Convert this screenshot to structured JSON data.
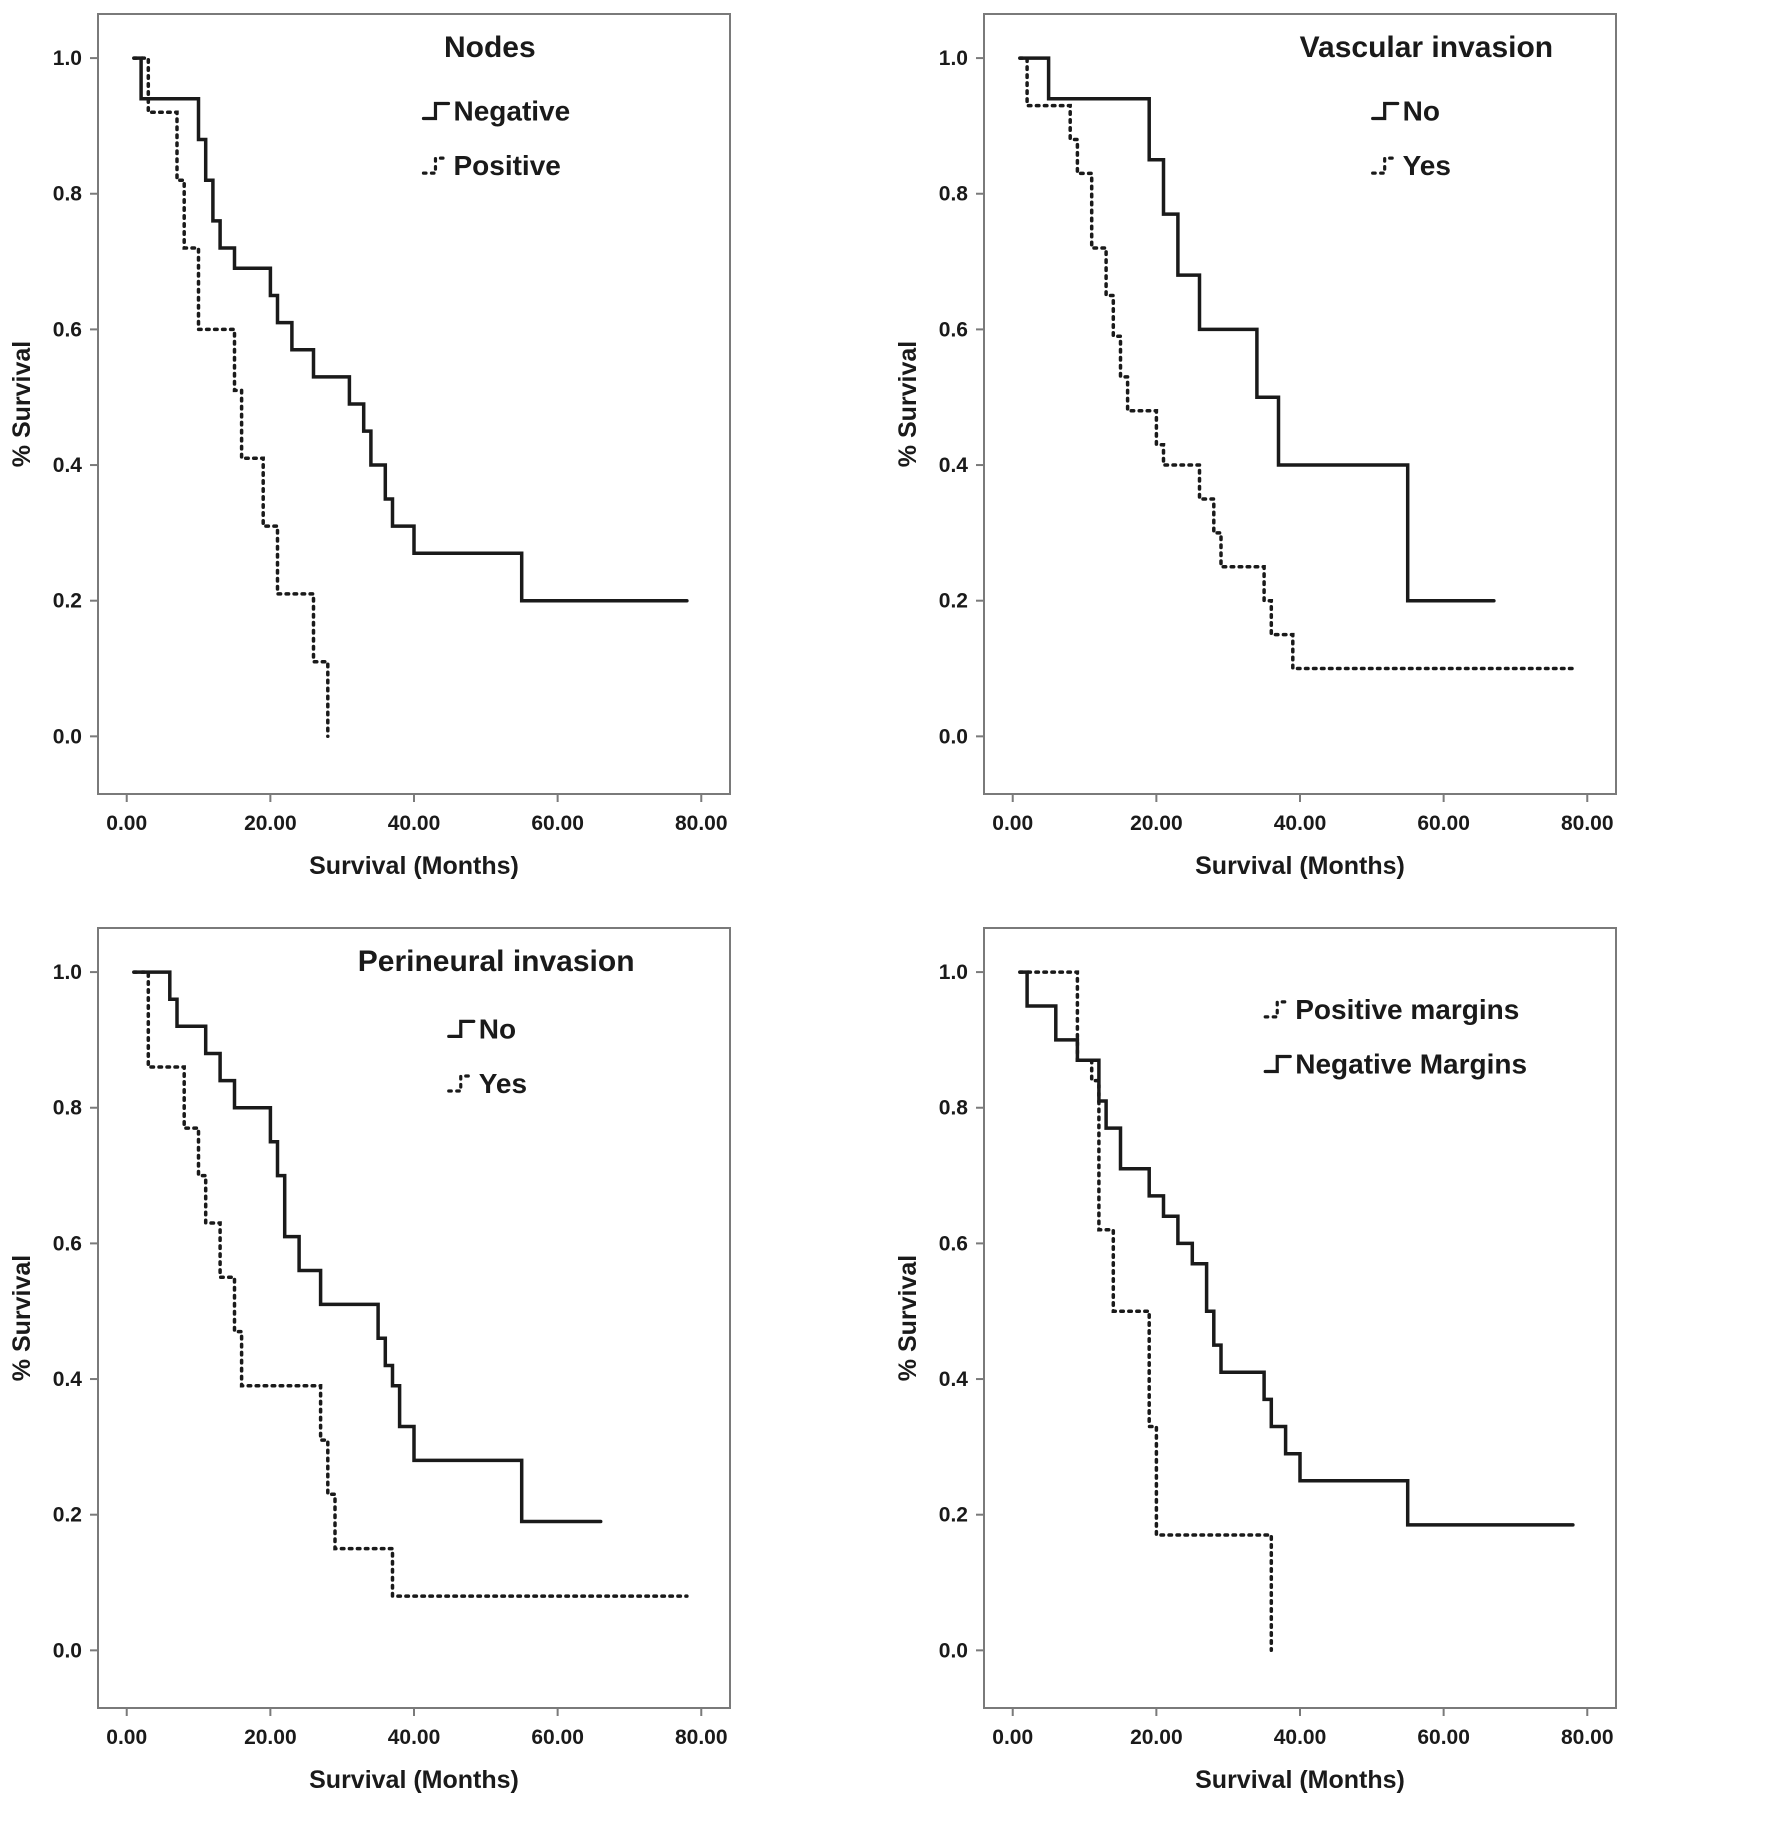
{
  "figure": {
    "description": "Four Kaplan-Meier survival step plots arranged in a 2x2 grid",
    "x_axis_label": "Survival (Months)",
    "y_axis_label": "% Survival"
  },
  "chart_data": [
    {
      "id": "nodes",
      "type": "line",
      "subtype": "kaplan-meier-step",
      "title": "Nodes",
      "xlabel": "Survival (Months)",
      "ylabel": "% Survival",
      "xlim": [
        0,
        80
      ],
      "ylim": [
        0.0,
        1.0
      ],
      "x_tick_values": [
        0,
        20,
        40,
        60,
        80
      ],
      "x_tick_labels": [
        "0.00",
        "20.00",
        "40.00",
        "60.00",
        "80.00"
      ],
      "y_tick_values": [
        0.0,
        0.2,
        0.4,
        0.6,
        0.8,
        1.0
      ],
      "y_tick_labels": [
        "0.0",
        "0.2",
        "0.4",
        "0.6",
        "0.8",
        "1.0"
      ],
      "legend_position": "top-center-inside",
      "grid": false,
      "series": [
        {
          "name": "Negative",
          "style": "solid",
          "points": [
            [
              1,
              1.0
            ],
            [
              2,
              0.94
            ],
            [
              10,
              0.88
            ],
            [
              11,
              0.82
            ],
            [
              12,
              0.76
            ],
            [
              13,
              0.72
            ],
            [
              15,
              0.69
            ],
            [
              20,
              0.65
            ],
            [
              21,
              0.61
            ],
            [
              23,
              0.57
            ],
            [
              26,
              0.53
            ],
            [
              31,
              0.49
            ],
            [
              33,
              0.45
            ],
            [
              34,
              0.4
            ],
            [
              36,
              0.35
            ],
            [
              37,
              0.31
            ],
            [
              40,
              0.27
            ],
            [
              55,
              0.2
            ],
            [
              78,
              0.2
            ]
          ]
        },
        {
          "name": "Positive",
          "style": "dotted",
          "points": [
            [
              1,
              1.0
            ],
            [
              3,
              0.92
            ],
            [
              7,
              0.82
            ],
            [
              8,
              0.72
            ],
            [
              10,
              0.6
            ],
            [
              15,
              0.51
            ],
            [
              16,
              0.41
            ],
            [
              19,
              0.31
            ],
            [
              21,
              0.21
            ],
            [
              26,
              0.11
            ],
            [
              28,
              0.0
            ]
          ]
        }
      ]
    },
    {
      "id": "vascular-invasion",
      "type": "line",
      "subtype": "kaplan-meier-step",
      "title": "Vascular invasion",
      "xlabel": "Survival (Months)",
      "ylabel": "% Survival",
      "xlim": [
        0,
        80
      ],
      "ylim": [
        0.0,
        1.0
      ],
      "x_tick_values": [
        0,
        20,
        40,
        60,
        80
      ],
      "x_tick_labels": [
        "0.00",
        "20.00",
        "40.00",
        "60.00",
        "80.00"
      ],
      "y_tick_values": [
        0.0,
        0.2,
        0.4,
        0.6,
        0.8,
        1.0
      ],
      "y_tick_labels": [
        "0.0",
        "0.2",
        "0.4",
        "0.6",
        "0.8",
        "1.0"
      ],
      "legend_position": "top-right-inside",
      "grid": false,
      "series": [
        {
          "name": "No",
          "style": "solid",
          "points": [
            [
              1,
              1.0
            ],
            [
              5,
              0.94
            ],
            [
              19,
              0.85
            ],
            [
              21,
              0.77
            ],
            [
              23,
              0.68
            ],
            [
              26,
              0.6
            ],
            [
              34,
              0.5
            ],
            [
              37,
              0.4
            ],
            [
              55,
              0.2
            ],
            [
              67,
              0.2
            ]
          ]
        },
        {
          "name": "Yes",
          "style": "dotted",
          "points": [
            [
              1,
              1.0
            ],
            [
              2,
              0.93
            ],
            [
              8,
              0.88
            ],
            [
              9,
              0.83
            ],
            [
              11,
              0.72
            ],
            [
              13,
              0.65
            ],
            [
              14,
              0.59
            ],
            [
              15,
              0.53
            ],
            [
              16,
              0.48
            ],
            [
              20,
              0.43
            ],
            [
              21,
              0.4
            ],
            [
              26,
              0.35
            ],
            [
              28,
              0.3
            ],
            [
              29,
              0.25
            ],
            [
              35,
              0.2
            ],
            [
              36,
              0.15
            ],
            [
              39,
              0.1
            ],
            [
              78,
              0.1
            ]
          ]
        }
      ]
    },
    {
      "id": "perineural-invasion",
      "type": "line",
      "subtype": "kaplan-meier-step",
      "title": "Perineural invasion",
      "xlabel": "Survival (Months)",
      "ylabel": "% Survival",
      "xlim": [
        0,
        80
      ],
      "ylim": [
        0.0,
        1.0
      ],
      "x_tick_values": [
        0,
        20,
        40,
        60,
        80
      ],
      "x_tick_labels": [
        "0.00",
        "20.00",
        "40.00",
        "60.00",
        "80.00"
      ],
      "y_tick_values": [
        0.0,
        0.2,
        0.4,
        0.6,
        0.8,
        1.0
      ],
      "y_tick_labels": [
        "0.0",
        "0.2",
        "0.4",
        "0.6",
        "0.8",
        "1.0"
      ],
      "legend_position": "top-center-inside",
      "grid": false,
      "series": [
        {
          "name": "No",
          "style": "solid",
          "points": [
            [
              1,
              1.0
            ],
            [
              6,
              0.96
            ],
            [
              7,
              0.92
            ],
            [
              11,
              0.88
            ],
            [
              13,
              0.84
            ],
            [
              15,
              0.8
            ],
            [
              20,
              0.75
            ],
            [
              21,
              0.7
            ],
            [
              22,
              0.61
            ],
            [
              24,
              0.56
            ],
            [
              27,
              0.51
            ],
            [
              35,
              0.46
            ],
            [
              36,
              0.42
            ],
            [
              37,
              0.39
            ],
            [
              38,
              0.33
            ],
            [
              40,
              0.28
            ],
            [
              55,
              0.19
            ],
            [
              66,
              0.19
            ]
          ]
        },
        {
          "name": "Yes",
          "style": "dotted",
          "points": [
            [
              1,
              1.0
            ],
            [
              3,
              0.86
            ],
            [
              8,
              0.77
            ],
            [
              10,
              0.7
            ],
            [
              11,
              0.63
            ],
            [
              13,
              0.55
            ],
            [
              15,
              0.47
            ],
            [
              16,
              0.39
            ],
            [
              27,
              0.31
            ],
            [
              28,
              0.23
            ],
            [
              29,
              0.15
            ],
            [
              37,
              0.08
            ],
            [
              78,
              0.08
            ]
          ]
        }
      ]
    },
    {
      "id": "margins",
      "type": "line",
      "subtype": "kaplan-meier-step",
      "title": "",
      "xlabel": "Survival (Months)",
      "ylabel": "% Survival",
      "xlim": [
        0,
        80
      ],
      "ylim": [
        0.0,
        1.0
      ],
      "x_tick_values": [
        0,
        20,
        40,
        60,
        80
      ],
      "x_tick_labels": [
        "0.00",
        "20.00",
        "40.00",
        "60.00",
        "80.00"
      ],
      "y_tick_values": [
        0.0,
        0.2,
        0.4,
        0.6,
        0.8,
        1.0
      ],
      "y_tick_labels": [
        "0.0",
        "0.2",
        "0.4",
        "0.6",
        "0.8",
        "1.0"
      ],
      "legend_position": "top-right-inside",
      "grid": false,
      "series": [
        {
          "name": "Positive margins",
          "style": "dotted",
          "points": [
            [
              1,
              1.0
            ],
            [
              9,
              0.87
            ],
            [
              11,
              0.84
            ],
            [
              12,
              0.62
            ],
            [
              14,
              0.5
            ],
            [
              19,
              0.33
            ],
            [
              20,
              0.17
            ],
            [
              36,
              0.0
            ]
          ]
        },
        {
          "name": "Negative Margins",
          "style": "solid",
          "points": [
            [
              1,
              1.0
            ],
            [
              2,
              0.95
            ],
            [
              6,
              0.9
            ],
            [
              9,
              0.87
            ],
            [
              12,
              0.81
            ],
            [
              13,
              0.77
            ],
            [
              15,
              0.71
            ],
            [
              19,
              0.67
            ],
            [
              21,
              0.64
            ],
            [
              23,
              0.6
            ],
            [
              25,
              0.57
            ],
            [
              27,
              0.5
            ],
            [
              28,
              0.45
            ],
            [
              29,
              0.41
            ],
            [
              35,
              0.37
            ],
            [
              36,
              0.33
            ],
            [
              38,
              0.29
            ],
            [
              40,
              0.25
            ],
            [
              55,
              0.185
            ],
            [
              78,
              0.185
            ]
          ]
        }
      ]
    }
  ],
  "style": {
    "curve_color": "#1a1a1a",
    "frame_color": "#7a7a7a",
    "background_color": "#ffffff"
  }
}
